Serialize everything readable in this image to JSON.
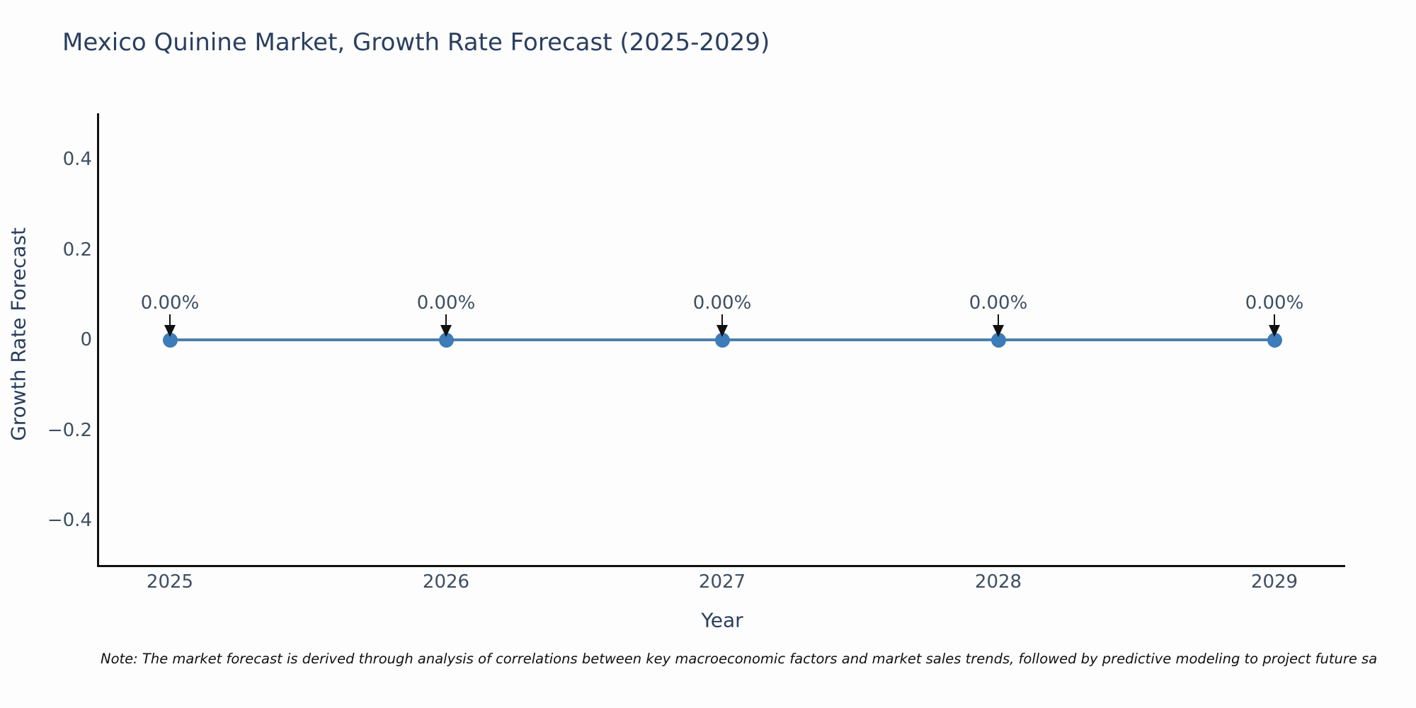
{
  "title": "Mexico Quinine Market, Growth Rate Forecast (2025-2029)",
  "note": "Note: The market forecast is derived through analysis of correlations between key macroeconomic factors and market sales trends, followed by predictive modeling to project future sa",
  "chart_data": {
    "type": "line",
    "title": "Mexico Quinine Market, Growth Rate Forecast (2025-2029)",
    "xlabel": "Year",
    "ylabel": "Growth Rate Forecast",
    "categories": [
      "2025",
      "2026",
      "2027",
      "2028",
      "2029"
    ],
    "series": [
      {
        "name": "Growth Rate Forecast",
        "values": [
          0,
          0,
          0,
          0,
          0
        ]
      }
    ],
    "point_labels": [
      "0.00%",
      "0.00%",
      "0.00%",
      "0.00%",
      "0.00%"
    ],
    "yticks": [
      {
        "value": 0.4,
        "label": "0.4"
      },
      {
        "value": 0.2,
        "label": "0.2"
      },
      {
        "value": 0,
        "label": "0"
      },
      {
        "value": -0.2,
        "label": "−0.2"
      },
      {
        "value": -0.4,
        "label": "−0.4"
      }
    ],
    "ylim": [
      -0.5,
      0.5
    ],
    "grid": false,
    "legend_position": "none",
    "marker_style": "circle",
    "annotation_arrows": true,
    "colors": {
      "line": "#4d7ea8",
      "marker": "#3c7cb8",
      "arrow": "#111111",
      "heading_text": "#2a3f5f",
      "tick_text": "#3d4f63",
      "axis": "#111111",
      "note_text": "#111111",
      "background": "#fdfdfd"
    }
  }
}
